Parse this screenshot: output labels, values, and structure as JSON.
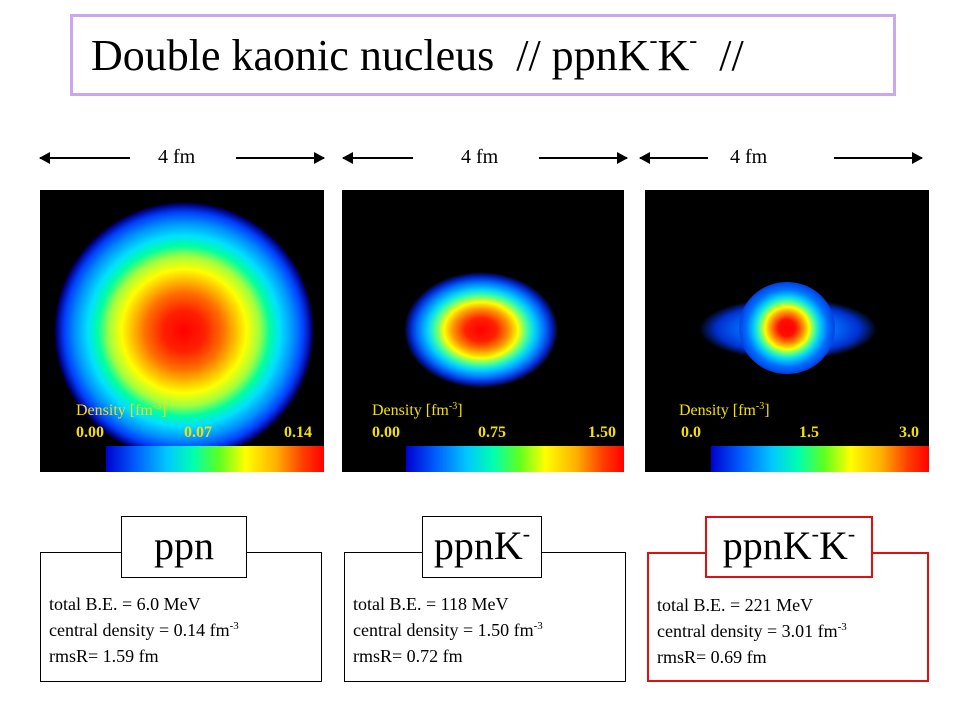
{
  "title": {
    "main": "Double kaonic nucleus",
    "formula_a": "// ppnK",
    "sup_a": "-",
    "formula_b": "K",
    "sup_b": "-",
    "end": "//"
  },
  "scale_label": "4 fm",
  "colors": {
    "title_border": "#c9a8f0",
    "highlight_border": "#e01010",
    "density_label": "#f5e000"
  },
  "panels": [
    {
      "density_label": "Density [fm",
      "density_unit_exp": "-3",
      "density_close": "]",
      "ticks": [
        "0.00",
        "0.07",
        "0.14"
      ],
      "label_color": "#f5e000"
    },
    {
      "density_label": "Density [fm",
      "density_unit_exp": "-3",
      "density_close": "]",
      "ticks": [
        "0.00",
        "0.75",
        "1.50"
      ],
      "label_color": "#f5e000"
    },
    {
      "density_label": "Density [fm",
      "density_unit_exp": "-3",
      "density_close": "]",
      "ticks": [
        "0.0",
        "1.5",
        "3.0"
      ],
      "label_color": "#f5e000"
    }
  ],
  "systems": [
    {
      "name": "ppn",
      "name_sup_1": "",
      "name_mid": "",
      "name_sup_2": "",
      "be": "total B.E. = 6.0 MeV",
      "cd": "central density =  0.14 fm",
      "cd_exp": "-3",
      "rms": "rmsR= 1.59 fm"
    },
    {
      "name": "ppnK",
      "name_sup_1": "-",
      "name_mid": "",
      "name_sup_2": "",
      "be": "total B.E. = 118 MeV",
      "cd": "central density =  1.50 fm",
      "cd_exp": "-3",
      "rms": "rmsR= 0.72 fm"
    },
    {
      "name": "ppnK",
      "name_sup_1": "-",
      "name_mid": "K",
      "name_sup_2": "-",
      "be": "total B.E. = 221 MeV",
      "cd": "central density =  3.01 fm",
      "cd_exp": "-3",
      "rms": "rmsR= 0.69 fm"
    }
  ]
}
